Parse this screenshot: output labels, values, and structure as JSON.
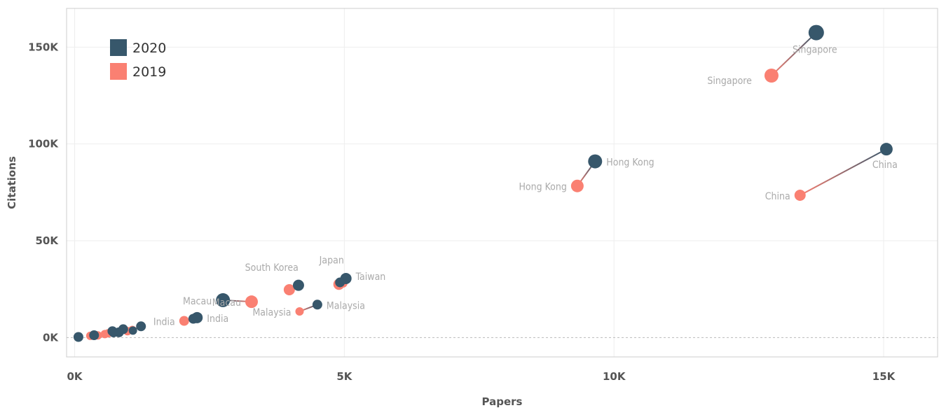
{
  "colors": {
    "y2020": "#37576b",
    "y2019": "#fa8072",
    "grid": "#eeeeee",
    "frame": "#cccccc"
  },
  "chart_data": {
    "type": "scatter",
    "title": "",
    "xlabel": "Papers",
    "ylabel": "Citations",
    "xlim": [
      -150,
      16000
    ],
    "ylim": [
      -10000,
      170000
    ],
    "x_ticks": [
      {
        "value": 0,
        "label": "0K"
      },
      {
        "value": 5000,
        "label": "5K"
      },
      {
        "value": 10000,
        "label": "10K"
      },
      {
        "value": 15000,
        "label": "15K"
      }
    ],
    "y_ticks": [
      {
        "value": 0,
        "label": "0K"
      },
      {
        "value": 50000,
        "label": "50K"
      },
      {
        "value": 100000,
        "label": "100K"
      },
      {
        "value": 150000,
        "label": "150K"
      }
    ],
    "grid": true,
    "legend": {
      "placement": "top-left",
      "items": [
        {
          "name": "2020",
          "color": "#37576b"
        },
        {
          "name": "2019",
          "color": "#fa8072"
        }
      ]
    },
    "series": [
      {
        "name": "2020",
        "color": "#37576b",
        "points": [
          {
            "label": "Singapore",
            "x": 13750,
            "y": 157500,
            "size": 11,
            "label_pos": "below"
          },
          {
            "label": "China",
            "x": 15050,
            "y": 97300,
            "size": 9,
            "label_pos": "below"
          },
          {
            "label": "Hong Kong",
            "x": 9650,
            "y": 91000,
            "size": 10,
            "label_pos": "right"
          },
          {
            "label": "",
            "x": 4150,
            "y": 27000,
            "size": 8
          },
          {
            "label": "Taiwan",
            "x": 5030,
            "y": 30500,
            "size": 8,
            "label_pos": "right-up"
          },
          {
            "label": "",
            "x": 4920,
            "y": 28500,
            "size": 7
          },
          {
            "label": "Macau",
            "x": 2750,
            "y": 19300,
            "size": 10
          },
          {
            "label": "Malaysia",
            "x": 4500,
            "y": 17000,
            "size": 7,
            "label_pos": "right"
          },
          {
            "label": "India",
            "x": 2270,
            "y": 10300,
            "size": 8,
            "label_pos": "right"
          },
          {
            "label": "",
            "x": 2200,
            "y": 9700,
            "size": 7
          },
          {
            "label": "",
            "x": 1230,
            "y": 5800,
            "size": 7
          },
          {
            "label": "",
            "x": 900,
            "y": 4300,
            "size": 7
          },
          {
            "label": "",
            "x": 700,
            "y": 3300,
            "size": 7
          },
          {
            "label": "",
            "x": 820,
            "y": 2700,
            "size": 7
          },
          {
            "label": "",
            "x": 1080,
            "y": 3600,
            "size": 6
          },
          {
            "label": "",
            "x": 720,
            "y": 2300,
            "size": 6
          },
          {
            "label": "",
            "x": 360,
            "y": 1200,
            "size": 7
          },
          {
            "label": "",
            "x": 70,
            "y": 300,
            "size": 7
          }
        ]
      },
      {
        "name": "2019",
        "color": "#fa8072",
        "points": [
          {
            "label": "Singapore",
            "x": 12920,
            "y": 135300,
            "size": 10,
            "label_pos": "left"
          },
          {
            "label": "China",
            "x": 13450,
            "y": 73500,
            "size": 8
          },
          {
            "label": "Hong Kong",
            "x": 9320,
            "y": 78300,
            "size": 9
          },
          {
            "label": "South Korea",
            "x": 3980,
            "y": 24700,
            "size": 8,
            "label_pos": "above-left"
          },
          {
            "label": "Japan",
            "x": 4900,
            "y": 27500,
            "size": 8,
            "label_pos": "above"
          },
          {
            "label": "",
            "x": 4980,
            "y": 28000,
            "size": 6
          },
          {
            "label": "Macau",
            "x": 3280,
            "y": 18500,
            "size": 9
          },
          {
            "label": "Malaysia",
            "x": 4170,
            "y": 13500,
            "size": 6
          },
          {
            "label": "India",
            "x": 2030,
            "y": 8600,
            "size": 7
          },
          {
            "label": "",
            "x": 1070,
            "y": 3900,
            "size": 6
          },
          {
            "label": "",
            "x": 980,
            "y": 3300,
            "size": 6
          },
          {
            "label": "",
            "x": 560,
            "y": 1800,
            "size": 6
          },
          {
            "label": "",
            "x": 620,
            "y": 2200,
            "size": 6
          },
          {
            "label": "",
            "x": 290,
            "y": 900,
            "size": 6
          },
          {
            "label": "",
            "x": 430,
            "y": 1100,
            "size": 6
          }
        ]
      }
    ],
    "connections": [
      {
        "from": [
          13750,
          157500
        ],
        "to": [
          12920,
          135300
        ]
      },
      {
        "from": [
          15050,
          97300
        ],
        "to": [
          13450,
          73500
        ]
      },
      {
        "from": [
          9650,
          91000
        ],
        "to": [
          9320,
          78300
        ]
      },
      {
        "from": [
          4150,
          27000
        ],
        "to": [
          3980,
          24700
        ]
      },
      {
        "from": [
          5030,
          30500
        ],
        "to": [
          4900,
          27500
        ]
      },
      {
        "from": [
          2750,
          19300
        ],
        "to": [
          3280,
          18500
        ]
      },
      {
        "from": [
          4500,
          17000
        ],
        "to": [
          4170,
          13500
        ]
      },
      {
        "from": [
          2270,
          10300
        ],
        "to": [
          2030,
          8600
        ]
      },
      {
        "from": [
          1230,
          5800
        ],
        "to": [
          1070,
          3900
        ]
      },
      {
        "from": [
          900,
          4300
        ],
        "to": [
          620,
          2200
        ]
      },
      {
        "from": [
          360,
          1200
        ],
        "to": [
          290,
          900
        ]
      }
    ]
  }
}
